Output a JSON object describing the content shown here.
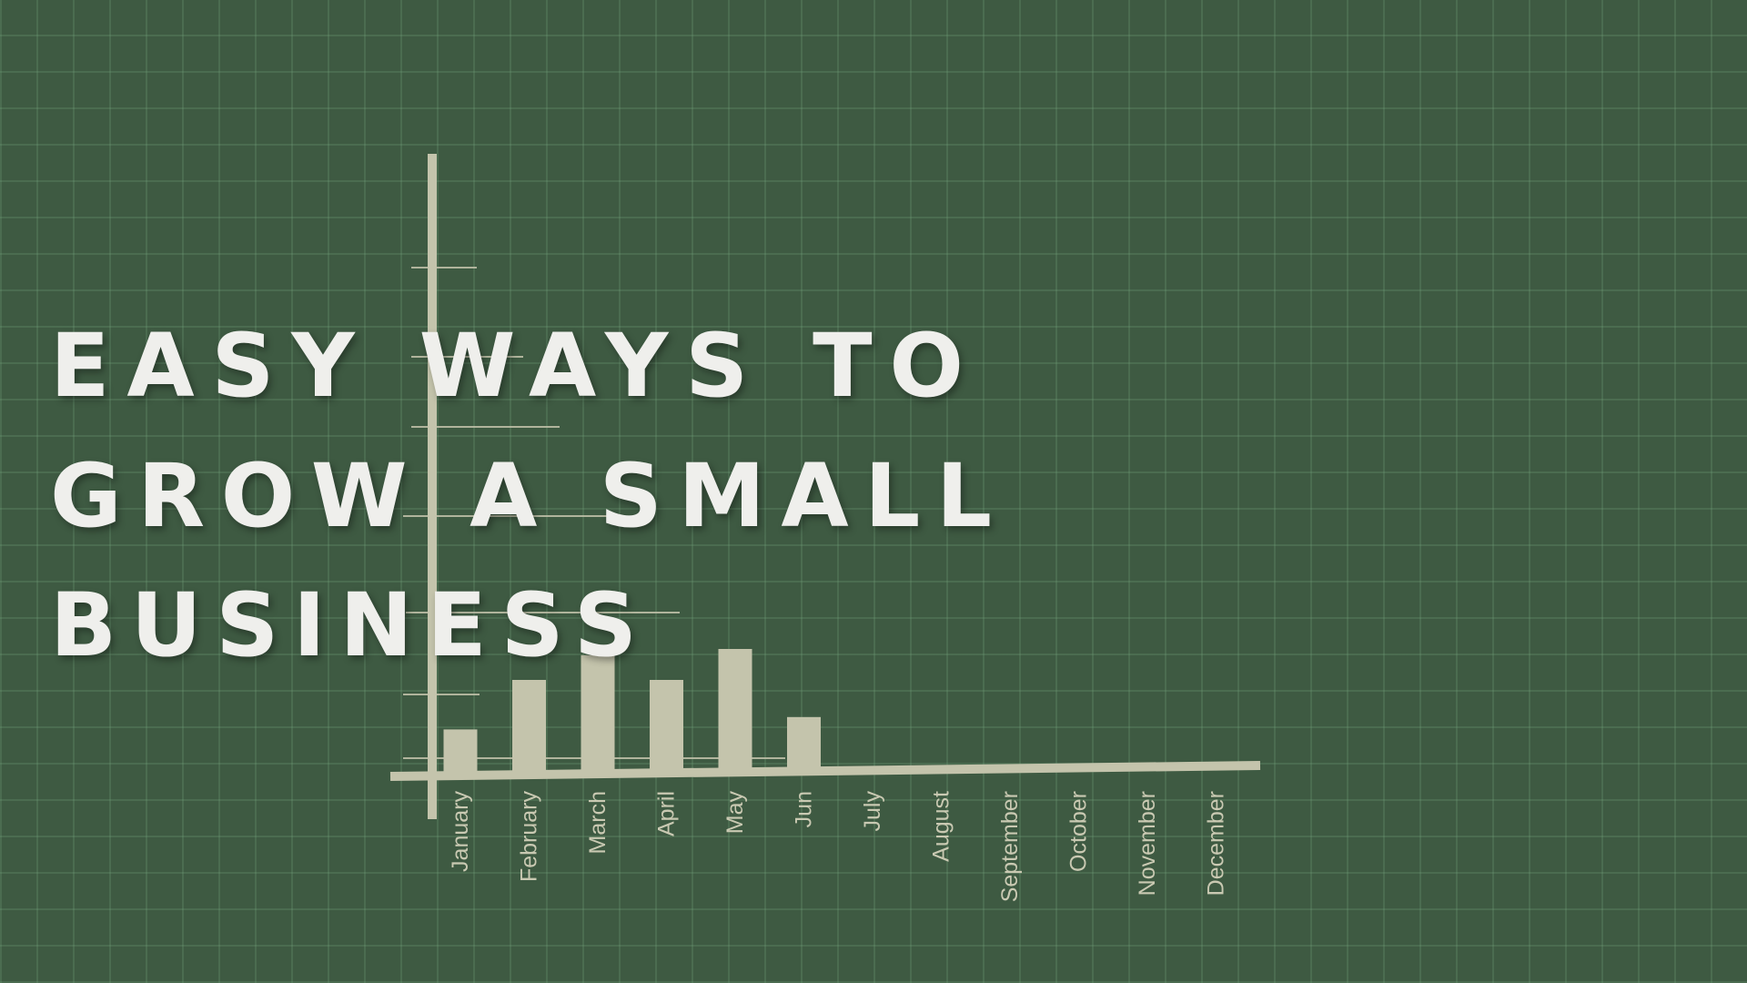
{
  "title_lines": [
    "EASY WAYS TO",
    "GROW A SMALL",
    "BUSINESS"
  ],
  "chart_data": {
    "type": "bar",
    "categories": [
      "January",
      "February",
      "March",
      "April",
      "May",
      "Jun",
      "July",
      "August",
      "September",
      "October",
      "November",
      "December"
    ],
    "values": [
      7,
      15,
      19,
      15,
      20,
      9,
      null,
      null,
      null,
      null,
      null,
      null
    ],
    "color": "#c4c4ac",
    "ylim": [
      0,
      100
    ]
  }
}
